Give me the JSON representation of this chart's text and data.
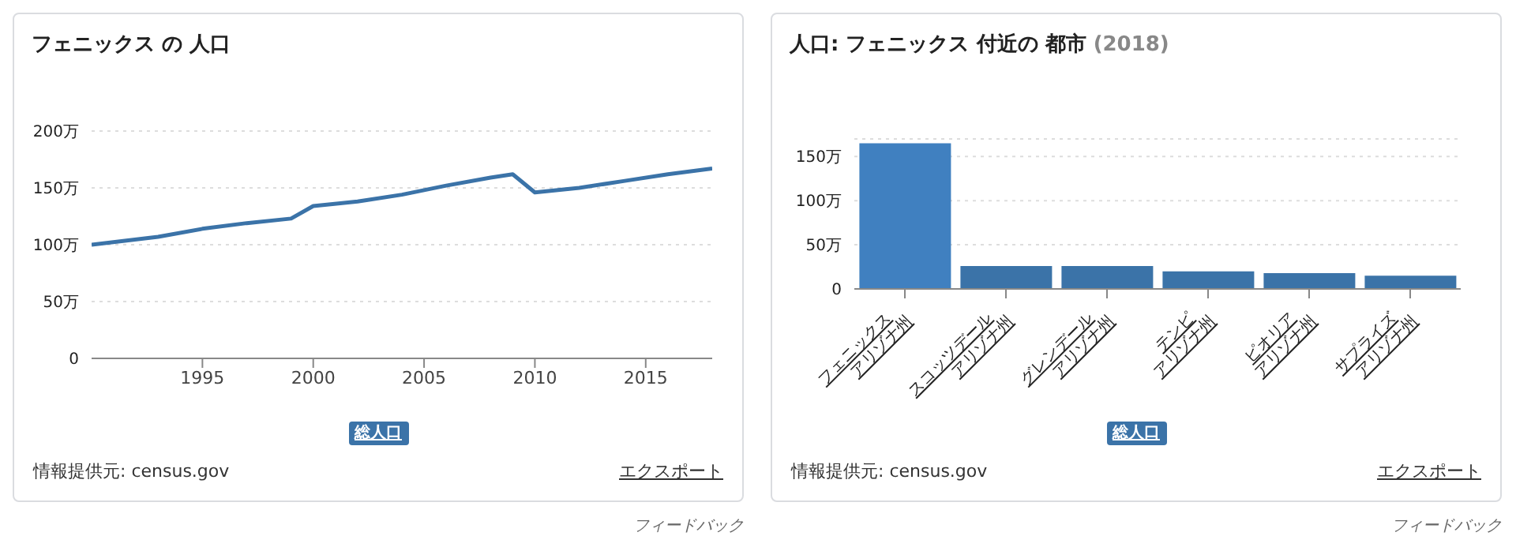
{
  "chart_data": [
    {
      "type": "line",
      "title": "フェニックス の 人口",
      "x": [
        1990,
        1993,
        1995,
        1997,
        1999,
        2000,
        2002,
        2004,
        2006,
        2008,
        2009,
        2010,
        2012,
        2014,
        2016,
        2018
      ],
      "series": [
        {
          "name": "総人口",
          "color": "#3b73a8",
          "values": [
            100,
            107,
            114,
            119,
            123,
            134,
            138,
            144,
            152,
            159,
            162,
            146,
            150,
            156,
            162,
            167
          ]
        }
      ],
      "xlim": [
        1990,
        2018
      ],
      "xticks": [
        1995,
        2000,
        2005,
        2010,
        2015
      ],
      "ylim": [
        0,
        200
      ],
      "yticks": [
        {
          "value": 0,
          "label": "0"
        },
        {
          "value": 50,
          "label": "50万"
        },
        {
          "value": 100,
          "label": "100万"
        },
        {
          "value": 150,
          "label": "150万"
        },
        {
          "value": 200,
          "label": "200万"
        }
      ],
      "grid": "y",
      "legend": "bottom",
      "marker": "none",
      "line_style": "solid",
      "annotations": [
        "情報提供元: census.gov",
        "エクスポート",
        "フィードバック"
      ]
    },
    {
      "type": "bar",
      "title": "人口: フェニックス 付近の 都市",
      "subtitle": "(2018)",
      "categories": [
        "フェニックス\nアリゾナ州",
        "スコッツデール\nアリゾナ州",
        "グレンデール\nアリゾナ州",
        "テンピ\nアリゾナ州",
        "ピオリア\nアリゾナ州",
        "サプライズ\nアリゾナ州"
      ],
      "series": [
        {
          "name": "総人口",
          "color": "#3b73a8",
          "colors": [
            "#4080c0",
            "#3b73a8",
            "#3b73a8",
            "#3b73a8",
            "#3b73a8",
            "#3b73a8"
          ],
          "values": [
            165,
            26,
            26,
            20,
            18,
            15
          ]
        }
      ],
      "ylim": [
        0,
        170
      ],
      "yticks": [
        {
          "value": 0,
          "label": "0"
        },
        {
          "value": 50,
          "label": "50万"
        },
        {
          "value": 100,
          "label": "100万"
        },
        {
          "value": 150,
          "label": "150万"
        }
      ],
      "grid": "y",
      "legend": "bottom",
      "annotations": [
        "情報提供元: census.gov",
        "エクスポート",
        "フィードバック"
      ]
    }
  ]
}
